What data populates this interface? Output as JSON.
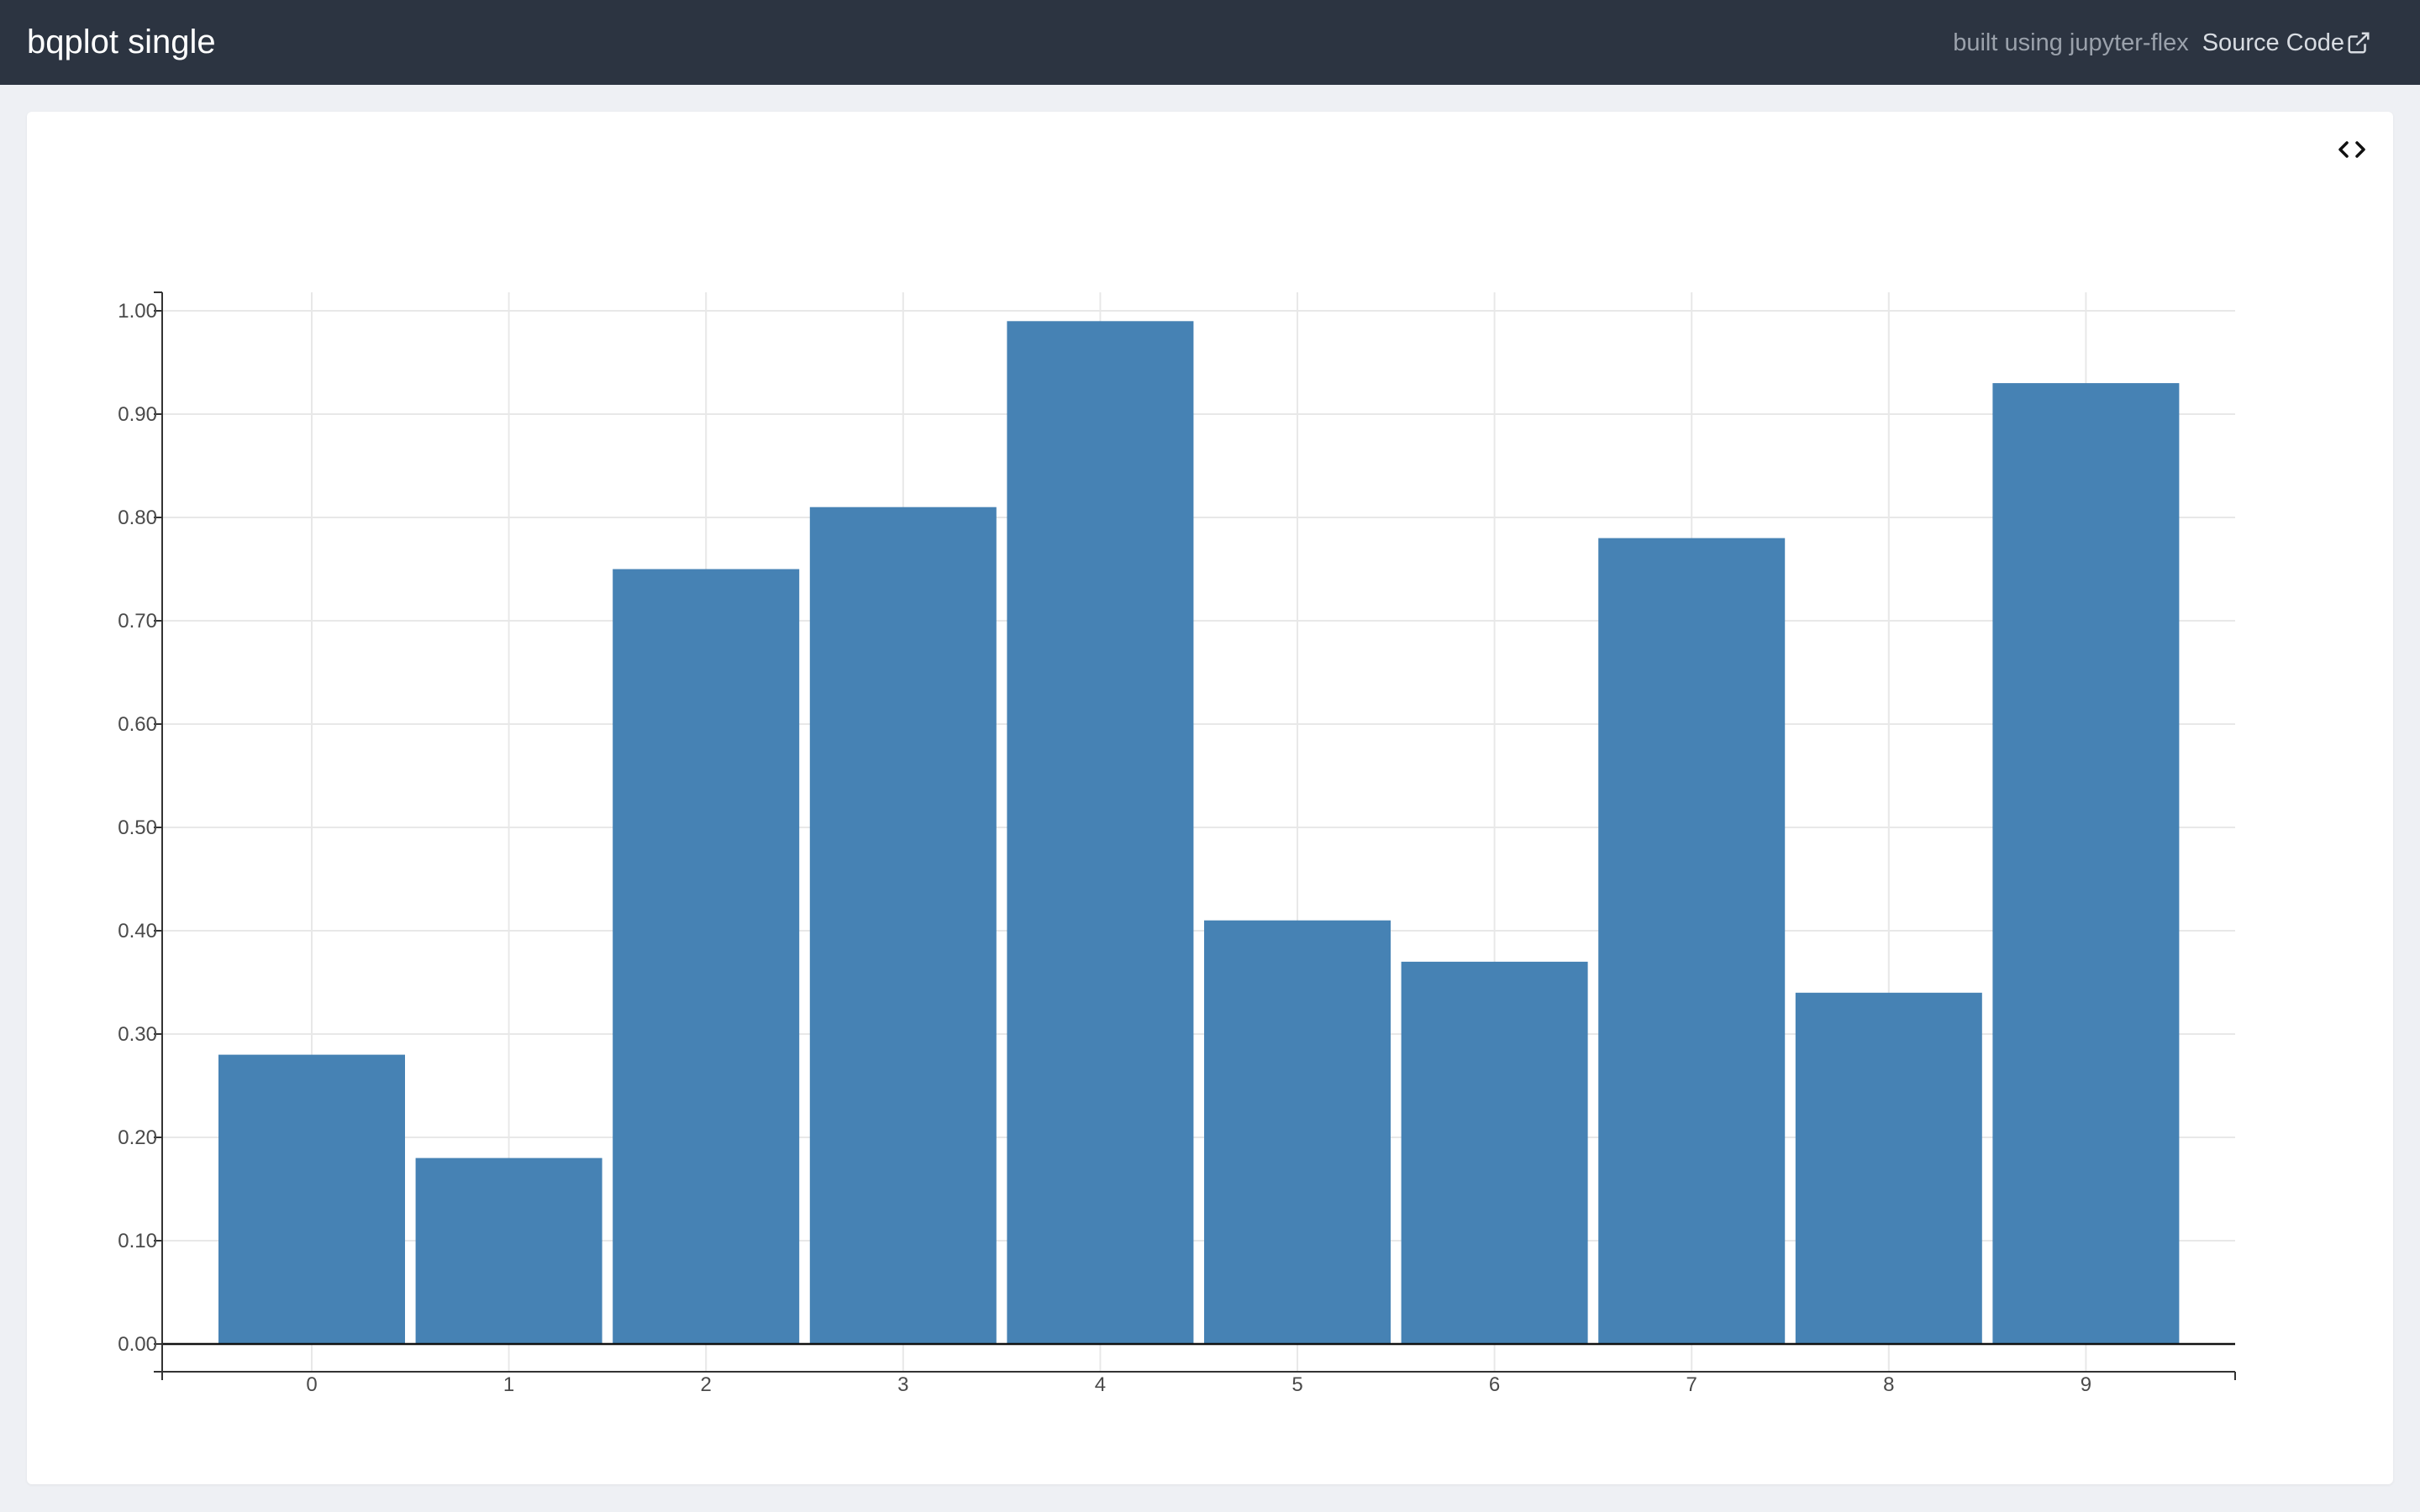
{
  "header": {
    "title": "bqplot single",
    "built_label": "built using jupyter-flex",
    "source_label": "Source Code",
    "source_icon": "external-link-icon",
    "background_color": "#2c3441"
  },
  "card": {
    "code_toggle_icon": "code-icon"
  },
  "chart_data": {
    "type": "bar",
    "title": "",
    "xlabel": "",
    "ylabel": "",
    "categories": [
      "0",
      "1",
      "2",
      "3",
      "4",
      "5",
      "6",
      "7",
      "8",
      "9"
    ],
    "values": [
      0.28,
      0.18,
      0.75,
      0.81,
      0.99,
      0.41,
      0.37,
      0.78,
      0.34,
      0.93
    ],
    "ylim": [
      -0.027,
      1.016
    ],
    "yticks": [
      0.0,
      0.1,
      0.2,
      0.3,
      0.4,
      0.5,
      0.6,
      0.7,
      0.8,
      0.9,
      1.0
    ],
    "ytick_labels": [
      "0.00",
      "0.10",
      "0.20",
      "0.30",
      "0.40",
      "0.50",
      "0.60",
      "0.70",
      "0.80",
      "0.90",
      "1.00"
    ],
    "grid": true,
    "bar_color": "#4682b4",
    "grid_color": "#e8e8e8",
    "axis_color": "#333333"
  }
}
